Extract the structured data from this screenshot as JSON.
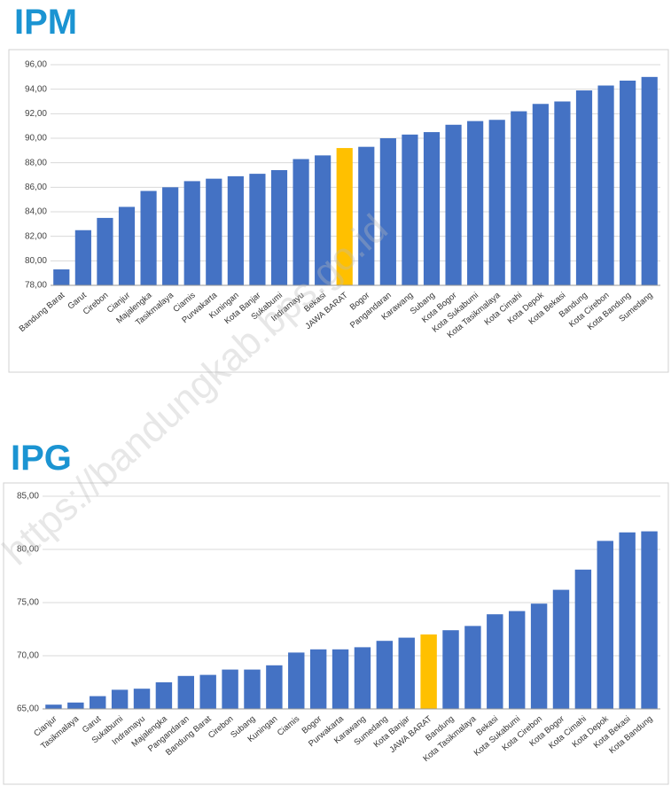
{
  "watermark": "https://bandungkab.bps.go.id",
  "chart_data": [
    {
      "type": "bar",
      "title": "IPM",
      "categories": [
        "Bandung Barat",
        "Garut",
        "Cirebon",
        "Cianjur",
        "Majalengka",
        "Tasikmalaya",
        "Ciamis",
        "Purwakarta",
        "Kuningan",
        "Kota Banjar",
        "Sukabumi",
        "Indramayu",
        "Bekasi",
        "JAWA BARAT",
        "Bogor",
        "Pangandaran",
        "Karawang",
        "Subang",
        "Kota Bogor",
        "Kota Sukabumi",
        "Kota Tasikmalaya",
        "Kota Cimahi",
        "Kota Depok",
        "Kota Bekasi",
        "Bandung",
        "Kota Cirebon",
        "Kota Bandung",
        "Sumedang"
      ],
      "values": [
        79.3,
        82.5,
        83.5,
        84.4,
        85.7,
        86.0,
        86.5,
        86.7,
        86.9,
        87.1,
        87.4,
        88.3,
        88.6,
        89.2,
        89.3,
        90.0,
        90.3,
        90.5,
        91.1,
        91.4,
        91.5,
        92.2,
        92.8,
        93.0,
        93.9,
        94.3,
        94.7,
        95.0
      ],
      "colors": [
        "#4472c4",
        "#4472c4",
        "#4472c4",
        "#4472c4",
        "#4472c4",
        "#4472c4",
        "#4472c4",
        "#4472c4",
        "#4472c4",
        "#4472c4",
        "#4472c4",
        "#4472c4",
        "#4472c4",
        "#ffc000",
        "#4472c4",
        "#4472c4",
        "#4472c4",
        "#4472c4",
        "#4472c4",
        "#4472c4",
        "#4472c4",
        "#4472c4",
        "#4472c4",
        "#4472c4",
        "#4472c4",
        "#4472c4",
        "#4472c4",
        "#4472c4"
      ],
      "ylim": [
        78,
        96
      ],
      "yticks": [
        {
          "value": 78,
          "label": "78,00"
        },
        {
          "value": 80,
          "label": "80,00"
        },
        {
          "value": 82,
          "label": "82,00"
        },
        {
          "value": 84,
          "label": "84,00"
        },
        {
          "value": 86,
          "label": "86,00"
        },
        {
          "value": 88,
          "label": "88,00"
        },
        {
          "value": 90,
          "label": "90,00"
        },
        {
          "value": 92,
          "label": "92,00"
        },
        {
          "value": 94,
          "label": "94,00"
        },
        {
          "value": 96,
          "label": "96,00"
        }
      ],
      "grid": true
    },
    {
      "type": "bar",
      "title": "IPG",
      "categories": [
        "Cianjur",
        "Tasikmalaya",
        "Garut",
        "Sukabumi",
        "Indramayu",
        "Majalengka",
        "Pangandaran",
        "Bandung Barat",
        "Cirebon",
        "Subang",
        "Kuningan",
        "Ciamis",
        "Bogor",
        "Purwakarta",
        "Karawang",
        "Sumedang",
        "Kota Banjar",
        "JAWA BARAT",
        "Bandung",
        "Kota Tasikmalaya",
        "Bekasi",
        "Kota Sukabumi",
        "Kota Cirebon",
        "Kota Bogor",
        "Kota Cimahi",
        "Kota Depok",
        "Kota Bekasi",
        "Kota Bandung"
      ],
      "values": [
        65.4,
        65.6,
        66.2,
        66.8,
        66.9,
        67.5,
        68.1,
        68.2,
        68.7,
        68.7,
        69.1,
        70.3,
        70.6,
        70.6,
        70.8,
        71.4,
        71.7,
        72.0,
        72.4,
        72.8,
        73.9,
        74.2,
        74.9,
        76.2,
        78.1,
        80.8,
        81.6,
        81.7
      ],
      "colors": [
        "#4472c4",
        "#4472c4",
        "#4472c4",
        "#4472c4",
        "#4472c4",
        "#4472c4",
        "#4472c4",
        "#4472c4",
        "#4472c4",
        "#4472c4",
        "#4472c4",
        "#4472c4",
        "#4472c4",
        "#4472c4",
        "#4472c4",
        "#4472c4",
        "#4472c4",
        "#ffc000",
        "#4472c4",
        "#4472c4",
        "#4472c4",
        "#4472c4",
        "#4472c4",
        "#4472c4",
        "#4472c4",
        "#4472c4",
        "#4472c4",
        "#4472c4"
      ],
      "ylim": [
        65,
        85
      ],
      "yticks": [
        {
          "value": 65,
          "label": "65,00"
        },
        {
          "value": 70,
          "label": "70,00"
        },
        {
          "value": 75,
          "label": "75,00"
        },
        {
          "value": 80,
          "label": "80,00"
        },
        {
          "value": 85,
          "label": "85,00"
        }
      ],
      "grid": true
    }
  ]
}
